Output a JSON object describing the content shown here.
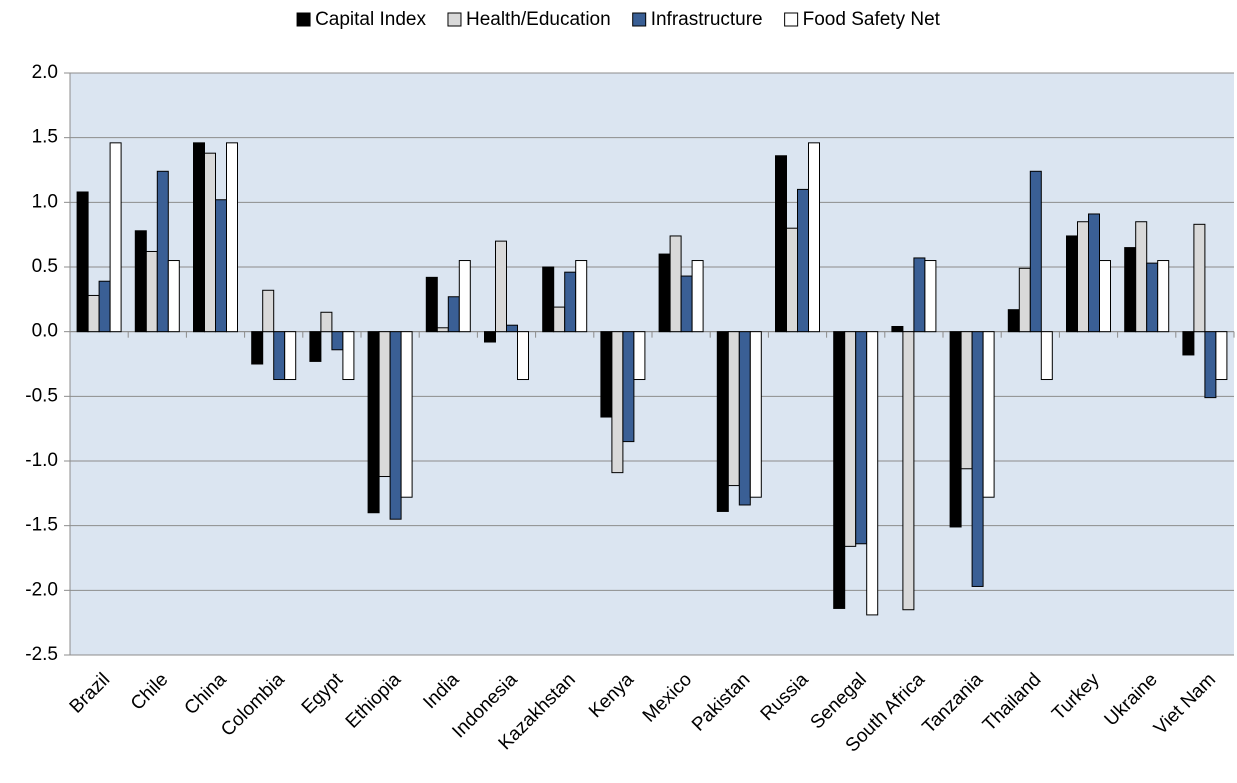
{
  "chart_data": {
    "type": "bar",
    "categories": [
      "Brazil",
      "Chile",
      "China",
      "Colombia",
      "Egypt",
      "Ethiopia",
      "India",
      "Indonesia",
      "Kazakhstan",
      "Kenya",
      "Mexico",
      "Pakistan",
      "Russia",
      "Senegal",
      "South Africa",
      "Tanzania",
      "Thailand",
      "Turkey",
      "Ukraine",
      "Viet Nam"
    ],
    "series": [
      {
        "name": "Capital Index",
        "color": "#000000",
        "values": [
          1.08,
          0.78,
          1.46,
          -0.25,
          -0.23,
          -1.4,
          0.42,
          -0.08,
          0.5,
          -0.66,
          0.6,
          -1.39,
          1.36,
          -2.14,
          0.04,
          -1.51,
          0.17,
          0.74,
          0.65,
          -0.18
        ]
      },
      {
        "name": "Health/Education",
        "color": "#d9d9d9",
        "values": [
          0.28,
          0.62,
          1.38,
          0.32,
          0.15,
          -1.12,
          0.03,
          0.7,
          0.19,
          -1.09,
          0.74,
          -1.19,
          0.8,
          -1.66,
          -2.15,
          -1.06,
          0.49,
          0.85,
          0.85,
          0.83
        ]
      },
      {
        "name": "Infrastructure",
        "color": "#3a5f95",
        "values": [
          0.39,
          1.24,
          1.02,
          -0.37,
          -0.14,
          -1.45,
          0.27,
          0.05,
          0.46,
          -0.85,
          0.43,
          -1.34,
          1.1,
          -1.64,
          0.57,
          -1.97,
          1.24,
          0.91,
          0.53,
          -0.51
        ]
      },
      {
        "name": "Food Safety Net",
        "color": "#ffffff",
        "values": [
          1.46,
          0.55,
          1.46,
          -0.37,
          -0.37,
          -1.28,
          0.55,
          -0.37,
          0.55,
          -0.37,
          0.55,
          -1.28,
          1.46,
          -2.19,
          0.55,
          -1.28,
          -0.37,
          0.55,
          0.55,
          -0.37
        ]
      }
    ],
    "ylim": [
      -2.5,
      2.0
    ],
    "yticks": [
      {
        "value": -2.5,
        "label": "-2.5"
      },
      {
        "value": -2,
        "label": "-2.0"
      },
      {
        "value": -1.5,
        "label": "-1.5"
      },
      {
        "value": -1,
        "label": "-1.0"
      },
      {
        "value": -0.5,
        "label": "-0.5"
      },
      {
        "value": 0,
        "label": "0.0"
      },
      {
        "value": 0.5,
        "label": "0.5"
      },
      {
        "value": 1,
        "label": "1.0"
      },
      {
        "value": 1.5,
        "label": "1.5"
      },
      {
        "value": 2,
        "label": "2.0"
      }
    ],
    "grid": true,
    "plot_background": "#dbe5f1",
    "legend": "top"
  }
}
